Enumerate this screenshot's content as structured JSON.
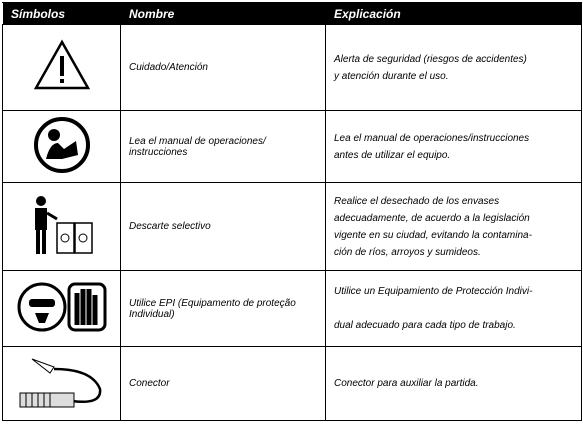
{
  "header": {
    "symbols": "Símbolos",
    "name": "Nombre",
    "explanation": "Explicación"
  },
  "rows": [
    {
      "name": "Cuidado/Atención",
      "explanation": [
        "Alerta de seguridad (riesgos de accidentes)",
        "y atención durante el uso."
      ]
    },
    {
      "name": "Lea el manual de operaciones/ instrucciones",
      "explanation": [
        "Lea el manual de operaciones/instrucciones",
        "antes de utilizar el equipo."
      ]
    },
    {
      "name": "Descarte selectivo",
      "explanation": [
        "Realice el desechado de los envases",
        "adecuadamente, de acuerdo a la legislación",
        "vigente en su ciudad, evitando la contamina-",
        "ción de ríos, arroyos y sumideos."
      ]
    },
    {
      "name": "Utilice EPI (Equipamento de proteção Individual)",
      "explanation": [
        "Utilice un Equipamiento de Protección Indivi-",
        "dual adecuado para cada tipo de trabajo."
      ]
    },
    {
      "name": "Conector",
      "explanation": [
        "Conector para auxiliar la partida."
      ]
    }
  ]
}
